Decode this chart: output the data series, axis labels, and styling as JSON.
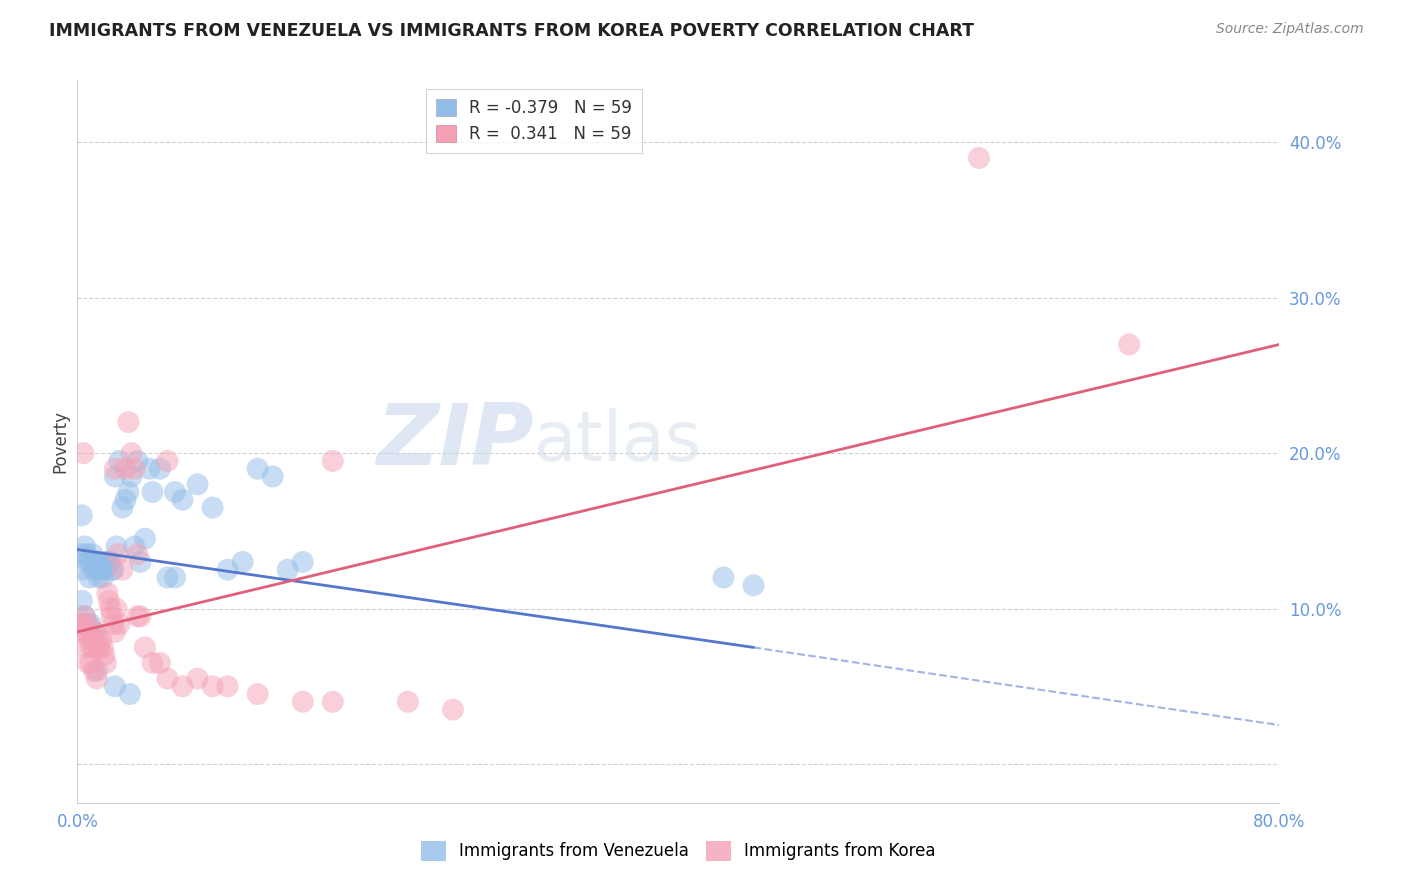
{
  "title": "IMMIGRANTS FROM VENEZUELA VS IMMIGRANTS FROM KOREA POVERTY CORRELATION CHART",
  "source": "Source: ZipAtlas.com",
  "ylabel": "Poverty",
  "xlim": [
    0.0,
    0.8
  ],
  "ylim": [
    -0.025,
    0.44
  ],
  "yticks": [
    0.0,
    0.1,
    0.2,
    0.3,
    0.4
  ],
  "ytick_labels": [
    "",
    "10.0%",
    "20.0%",
    "30.0%",
    "40.0%"
  ],
  "xticks": [
    0.0,
    0.2,
    0.4,
    0.6,
    0.8
  ],
  "xtick_labels": [
    "0.0%",
    "",
    "",
    "",
    "80.0%"
  ],
  "r_venezuela": -0.379,
  "r_korea": 0.341,
  "n": 59,
  "background_color": "#ffffff",
  "grid_color": "#cccccc",
  "blue_color": "#92bde8",
  "pink_color": "#f4a0b5",
  "blue_line_color": "#5577cc",
  "pink_line_color": "#e0607a",
  "legend_label_blue": "Immigrants from Venezuela",
  "legend_label_pink": "Immigrants from Korea",
  "venezuela_x": [
    0.003,
    0.004,
    0.005,
    0.006,
    0.007,
    0.008,
    0.009,
    0.01,
    0.011,
    0.012,
    0.013,
    0.014,
    0.015,
    0.016,
    0.017,
    0.018,
    0.019,
    0.02,
    0.021,
    0.022,
    0.023,
    0.024,
    0.025,
    0.026,
    0.028,
    0.03,
    0.032,
    0.034,
    0.036,
    0.038,
    0.04,
    0.042,
    0.045,
    0.048,
    0.05,
    0.055,
    0.06,
    0.065,
    0.07,
    0.08,
    0.09,
    0.1,
    0.11,
    0.12,
    0.13,
    0.14,
    0.15,
    0.003,
    0.005,
    0.007,
    0.009,
    0.011,
    0.013,
    0.025,
    0.035,
    0.065,
    0.43,
    0.45,
    0.003
  ],
  "venezuela_y": [
    0.135,
    0.125,
    0.14,
    0.135,
    0.13,
    0.12,
    0.13,
    0.135,
    0.125,
    0.13,
    0.125,
    0.12,
    0.13,
    0.125,
    0.12,
    0.125,
    0.13,
    0.13,
    0.13,
    0.13,
    0.125,
    0.125,
    0.185,
    0.14,
    0.195,
    0.165,
    0.17,
    0.175,
    0.185,
    0.14,
    0.195,
    0.13,
    0.145,
    0.19,
    0.175,
    0.19,
    0.12,
    0.175,
    0.17,
    0.18,
    0.165,
    0.125,
    0.13,
    0.19,
    0.185,
    0.125,
    0.13,
    0.105,
    0.095,
    0.09,
    0.09,
    0.085,
    0.06,
    0.05,
    0.045,
    0.12,
    0.12,
    0.115,
    0.16
  ],
  "korea_x": [
    0.003,
    0.004,
    0.005,
    0.006,
    0.007,
    0.008,
    0.009,
    0.01,
    0.011,
    0.012,
    0.013,
    0.014,
    0.015,
    0.016,
    0.017,
    0.018,
    0.019,
    0.02,
    0.021,
    0.022,
    0.023,
    0.024,
    0.025,
    0.026,
    0.027,
    0.028,
    0.03,
    0.032,
    0.034,
    0.036,
    0.038,
    0.04,
    0.042,
    0.045,
    0.05,
    0.055,
    0.06,
    0.07,
    0.08,
    0.09,
    0.1,
    0.12,
    0.15,
    0.17,
    0.22,
    0.25,
    0.003,
    0.005,
    0.007,
    0.009,
    0.011,
    0.013,
    0.025,
    0.04,
    0.06,
    0.6,
    0.7,
    0.17,
    0.004
  ],
  "korea_y": [
    0.09,
    0.085,
    0.095,
    0.085,
    0.09,
    0.08,
    0.075,
    0.08,
    0.075,
    0.085,
    0.08,
    0.075,
    0.075,
    0.08,
    0.075,
    0.07,
    0.065,
    0.11,
    0.105,
    0.1,
    0.095,
    0.09,
    0.085,
    0.1,
    0.135,
    0.09,
    0.125,
    0.19,
    0.22,
    0.2,
    0.19,
    0.095,
    0.095,
    0.075,
    0.065,
    0.065,
    0.055,
    0.05,
    0.055,
    0.05,
    0.05,
    0.045,
    0.04,
    0.04,
    0.04,
    0.035,
    0.09,
    0.075,
    0.065,
    0.065,
    0.06,
    0.055,
    0.19,
    0.135,
    0.195,
    0.39,
    0.27,
    0.195,
    0.2
  ],
  "blue_line_start_x": 0.0,
  "blue_line_start_y": 0.138,
  "blue_line_solid_end_x": 0.45,
  "blue_line_solid_end_y": 0.075,
  "blue_line_dashed_end_x": 0.8,
  "blue_line_dashed_end_y": 0.025,
  "pink_line_start_x": 0.0,
  "pink_line_start_y": 0.085,
  "pink_line_end_x": 0.8,
  "pink_line_end_y": 0.27
}
